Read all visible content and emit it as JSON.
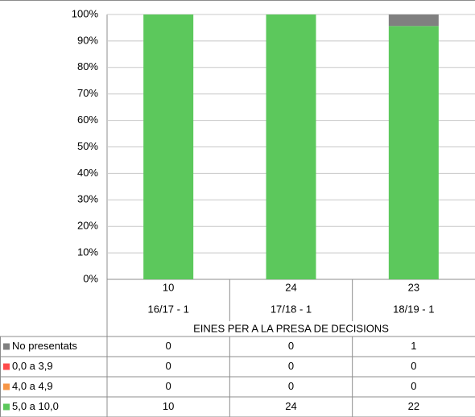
{
  "chart_data": {
    "type": "bar",
    "stacked": "percent",
    "categories": [
      "16/17  - 1",
      "17/18  - 1",
      "18/19  - 1"
    ],
    "totals": [
      10,
      24,
      23
    ],
    "group_label": "EINES PER A LA PRESA DE DECISIONS",
    "series": [
      {
        "name": "No presentats",
        "color": "#808080",
        "values": [
          0,
          0,
          1
        ]
      },
      {
        "name": "0,0 a 3,9",
        "color": "#ff4b4b",
        "values": [
          0,
          0,
          0
        ]
      },
      {
        "name": "4,0 a 4,9",
        "color": "#f79646",
        "values": [
          0,
          0,
          0
        ]
      },
      {
        "name": "5,0 a 10,0",
        "color": "#5cc85c",
        "values": [
          10,
          24,
          22
        ]
      }
    ],
    "ylim": [
      0,
      100
    ],
    "yticks": [
      {
        "value": 0,
        "label": "0%"
      },
      {
        "value": 10,
        "label": "10%"
      },
      {
        "value": 20,
        "label": "20%"
      },
      {
        "value": 30,
        "label": "30%"
      },
      {
        "value": 40,
        "label": "40%"
      },
      {
        "value": 50,
        "label": "50%"
      },
      {
        "value": 60,
        "label": "60%"
      },
      {
        "value": 70,
        "label": "70%"
      },
      {
        "value": 80,
        "label": "80%"
      },
      {
        "value": 90,
        "label": "90%"
      },
      {
        "value": 100,
        "label": "100%"
      }
    ],
    "grid": true
  }
}
